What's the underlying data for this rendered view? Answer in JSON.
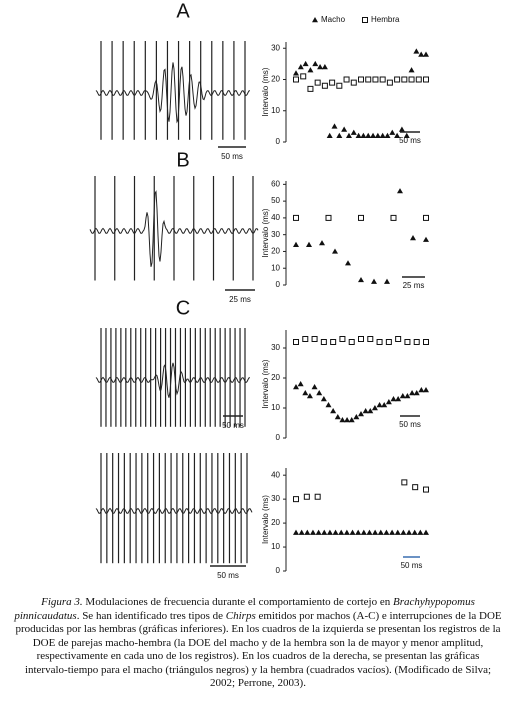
{
  "panels": [
    {
      "label": "A",
      "scale_bar": "50 ms"
    },
    {
      "label": "B",
      "scale_bar": "25 ms"
    },
    {
      "label": "C",
      "scale_bar": "50 ms"
    },
    {
      "scale_bar": "50 ms"
    }
  ],
  "chart_data": [
    {
      "type": "scatter",
      "y_label": "Intervalo (ms)",
      "scale_bar": "50 ms",
      "ylim": [
        0,
        32
      ],
      "yticks": [
        0,
        10,
        20,
        30
      ],
      "series": [
        {
          "name": "Macho",
          "color": "#111111",
          "marker": "triangle",
          "values": [
            22,
            24,
            25,
            23,
            25,
            24,
            24,
            2,
            5,
            2,
            4,
            2,
            3,
            2,
            2,
            2,
            2,
            2,
            2,
            2,
            3,
            2,
            4,
            2,
            23,
            29,
            28,
            28
          ]
        },
        {
          "name": "Hembra",
          "color": "#111111",
          "marker": "square",
          "values": [
            20,
            21,
            17,
            19,
            18,
            19,
            18,
            20,
            19,
            20,
            20,
            20,
            20,
            19,
            20,
            20,
            20,
            20,
            20
          ]
        }
      ]
    },
    {
      "type": "scatter",
      "y_label": "Intervalo (ms)",
      "scale_bar": "25 ms",
      "ylim": [
        0,
        62
      ],
      "yticks": [
        0,
        10,
        20,
        30,
        40,
        50,
        60
      ],
      "series": [
        {
          "color": "#111111",
          "marker": "triangle",
          "values": [
            24,
            24,
            25,
            20,
            13,
            3,
            2,
            2,
            56,
            28,
            27
          ]
        },
        {
          "color": "#111111",
          "marker": "square",
          "values": [
            40,
            40,
            40,
            40,
            40
          ]
        }
      ]
    },
    {
      "type": "scatter",
      "y_label": "Intervalo (ms)",
      "scale_bar": "50 ms",
      "ylim": [
        0,
        36
      ],
      "yticks": [
        0,
        10,
        20,
        30
      ],
      "series": [
        {
          "color": "#111111",
          "marker": "triangle",
          "values": [
            17,
            18,
            15,
            14,
            17,
            15,
            13,
            11,
            9,
            7,
            6,
            6,
            6,
            7,
            8,
            9,
            9,
            10,
            11,
            11,
            12,
            13,
            13,
            14,
            14,
            15,
            15,
            16,
            16
          ]
        },
        {
          "color": "#111111",
          "marker": "square",
          "values": [
            32,
            33,
            33,
            32,
            32,
            33,
            32,
            33,
            33,
            32,
            32,
            33,
            32,
            32,
            32
          ]
        }
      ]
    },
    {
      "type": "scatter",
      "y_label": "Intervalo (ms)",
      "scale_bar": "50 ms",
      "ylim": [
        0,
        43
      ],
      "yticks": [
        0,
        10,
        20,
        30,
        40
      ],
      "series": [
        {
          "color": "#111111",
          "marker": "triangle",
          "values": [
            16,
            16,
            16,
            16,
            16,
            16,
            16,
            16,
            16,
            16,
            16,
            16,
            16,
            16,
            16,
            16,
            16,
            16,
            16,
            16,
            16,
            16,
            16,
            16
          ]
        },
        {
          "color": "#111111",
          "marker": "square",
          "values": [
            30,
            31,
            31,
            null,
            null,
            null,
            null,
            null,
            null,
            null,
            37,
            35,
            34
          ]
        }
      ]
    }
  ],
  "caption": [
    "Figura 3.",
    " Modulaciones de frecuencia durante el comportamiento de cortejo en ",
    "Brachyhypopomus pinnicaudatus",
    ". Se han identificado tres tipos de ",
    "Chirps",
    " emitidos por machos (A-C) e interrupciones de la DOE producidas por las hembras (gráficas inferiores). En los cuadros de la izquierda se presentan los registros de la DOE de parejas macho-hembra (la DOE del macho y de la hembra son la de mayor y menor amplitud, respectivamente en cada uno de los registros). En los cuadros de la derecha, se presentan las gráficas intervalo-tiempo para el macho (triángulos negros) y la hembra (cuadrados vacíos). (Modificado de Silva; 2002; Perrone, 2003)."
  ]
}
